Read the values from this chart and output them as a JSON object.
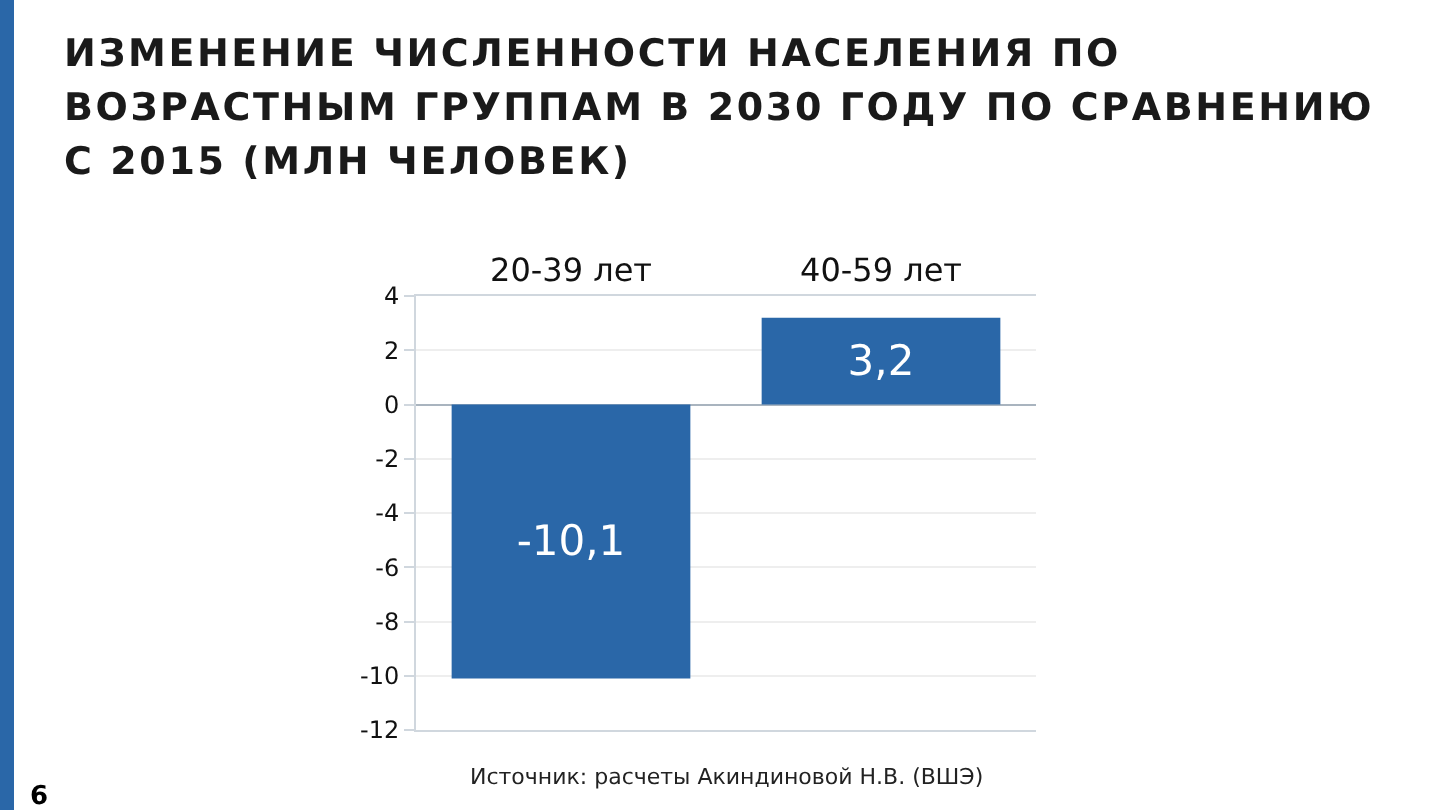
{
  "chart_data": {
    "type": "bar",
    "title": "ИЗМЕНЕНИЕ ЧИСЛЕННОСТИ НАСЕЛЕНИЯ ПО ВОЗРАСТНЫМ ГРУППАМ В 2030 ГОДУ ПО СРАВНЕНИЮ С 2015 (МЛН ЧЕЛОВЕК)",
    "categories": [
      "20-39 лет",
      "40-59 лет"
    ],
    "values": [
      -10.1,
      3.2
    ],
    "value_labels": [
      "-10,1",
      "3,2"
    ],
    "color": "#2a67a8",
    "ylim": [
      -12,
      4
    ],
    "yticks": [
      -12,
      -10,
      -8,
      -6,
      -4,
      -2,
      0,
      2,
      4
    ],
    "grid": "y",
    "annotations": [
      "Источник: расчеты Акиндиновой Н.В. (ВШЭ)",
      "6"
    ]
  }
}
